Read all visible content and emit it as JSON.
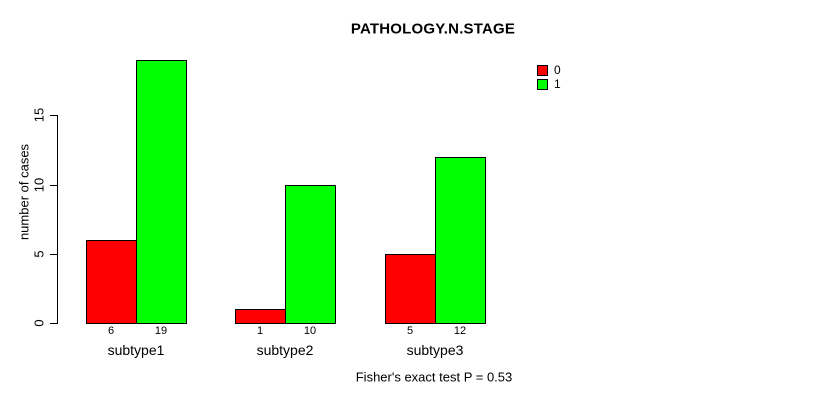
{
  "chart_data": {
    "type": "bar",
    "title": "PATHOLOGY.N.STAGE",
    "xlabel": "",
    "ylabel": "number of cases",
    "categories": [
      "subtype1",
      "subtype2",
      "subtype3"
    ],
    "series": [
      {
        "name": "0",
        "color": "#ff0000",
        "values": [
          6,
          1,
          5
        ]
      },
      {
        "name": "1",
        "color": "#00ff00",
        "values": [
          19,
          10,
          12
        ]
      }
    ],
    "y_ticks": [
      0,
      5,
      10,
      15
    ],
    "ylim": [
      0,
      19
    ],
    "grid": false,
    "legend_position": "top-right",
    "bar_value_labels_shown": true,
    "bar_border_color": "#000000",
    "background_color": "#ffffff",
    "annotation": "Fisher's exact test P = 0.53"
  }
}
